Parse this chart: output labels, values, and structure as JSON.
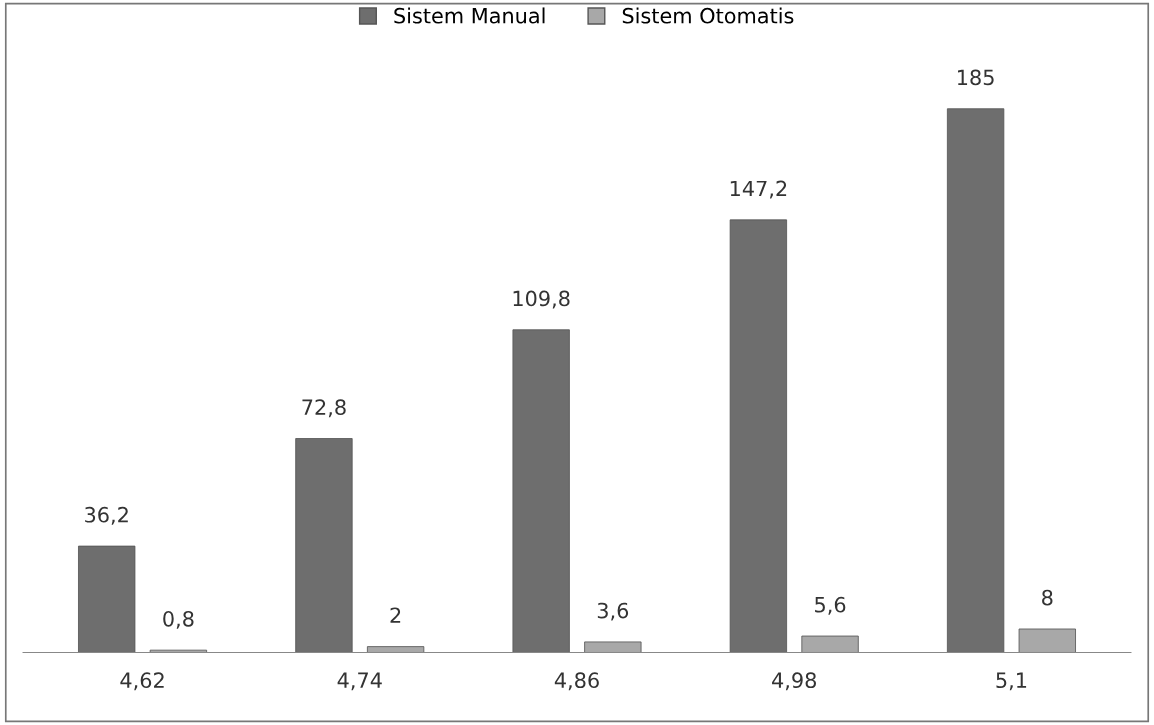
{
  "chart_data": {
    "type": "bar",
    "categories": [
      "4,62",
      "4,74",
      "4,86",
      "4,98",
      "5,1"
    ],
    "series": [
      {
        "name": "Sistem Manual",
        "color": "#6e6e6e",
        "values": [
          36.2,
          72.8,
          109.8,
          147.2,
          185
        ],
        "value_labels": [
          "36,2",
          "72,8",
          "109,8",
          "147,2",
          "185"
        ]
      },
      {
        "name": "Sistem Otomatis",
        "color": "#a8a8a8",
        "values": [
          0.8,
          2,
          3.6,
          5.6,
          8
        ],
        "value_labels": [
          "0,8",
          "2",
          "3,6",
          "5,6",
          "8"
        ]
      }
    ],
    "legend": "top"
  }
}
